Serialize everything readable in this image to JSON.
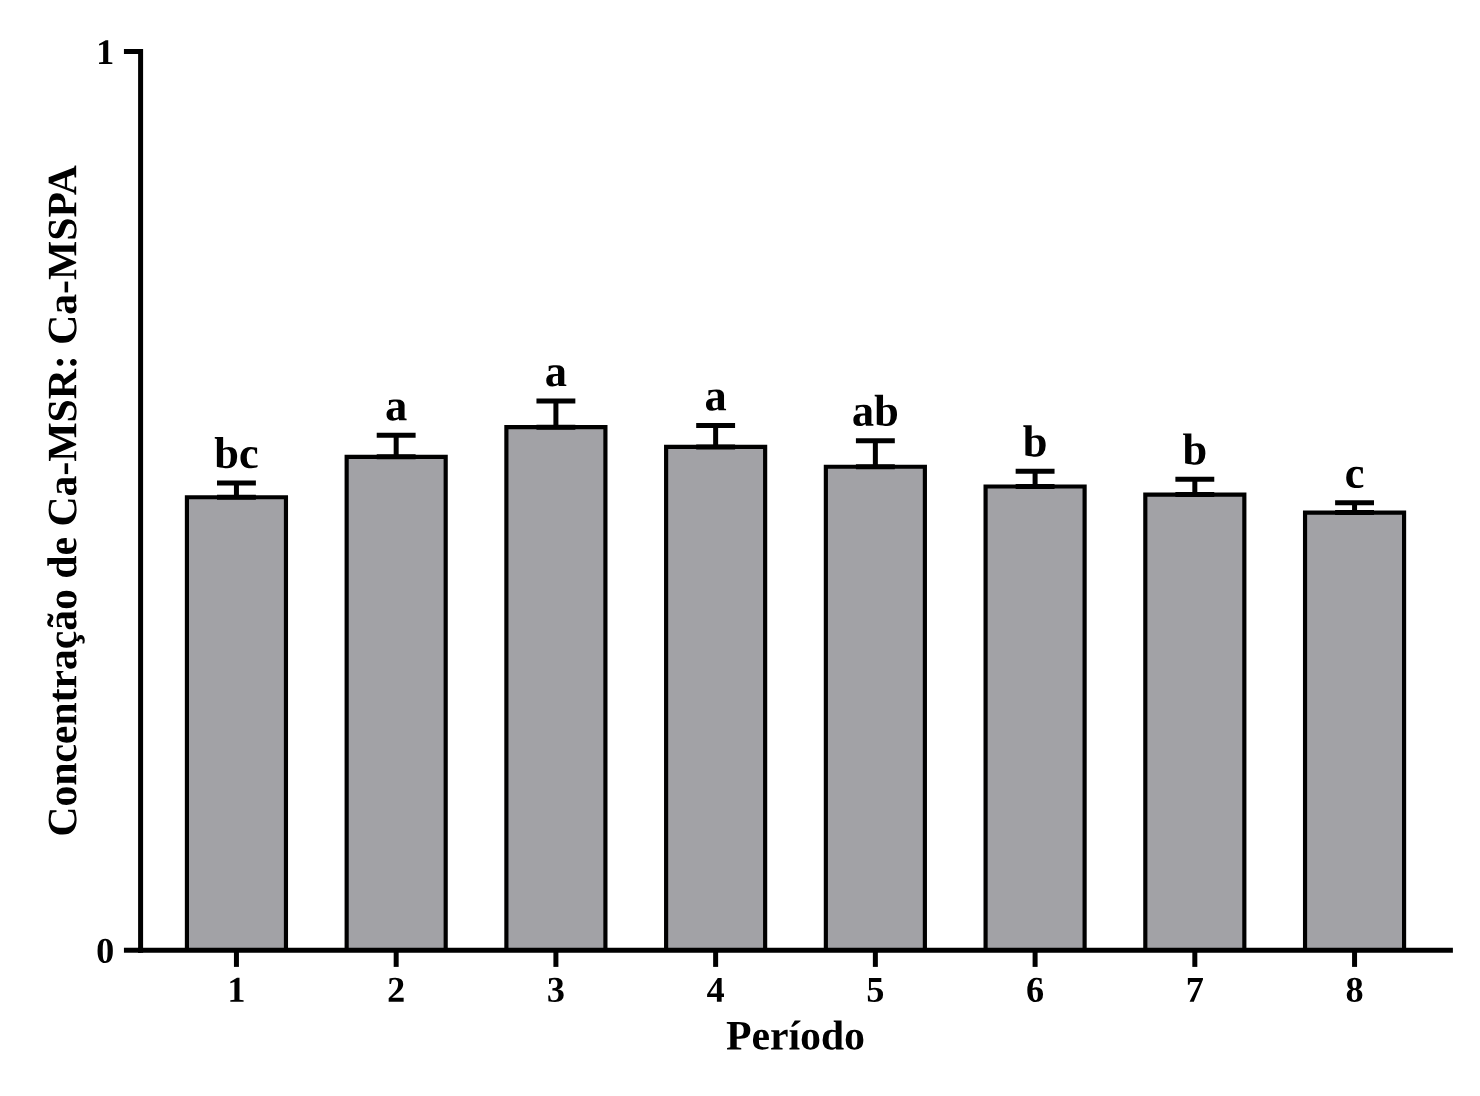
{
  "chart_data": {
    "type": "bar",
    "xlabel": "Período",
    "ylabel": "Concentração de Ca-MSR: Ca-MSPA",
    "categories": [
      "1",
      "2",
      "3",
      "4",
      "5",
      "6",
      "7",
      "8"
    ],
    "values": [
      0.504,
      0.549,
      0.582,
      0.56,
      0.538,
      0.516,
      0.507,
      0.487
    ],
    "errors": [
      [
        0.504,
        0.52
      ],
      [
        0.549,
        0.573
      ],
      [
        0.582,
        0.611
      ],
      [
        0.56,
        0.584
      ],
      [
        0.538,
        0.567
      ],
      [
        0.516,
        0.533
      ],
      [
        0.507,
        0.524
      ],
      [
        0.487,
        0.498
      ]
    ],
    "color": "#a2a2a6",
    "ylim": [
      0,
      1
    ],
    "yticks": [
      0,
      1
    ],
    "grid": false,
    "annotations": [
      {
        "text": "bc",
        "x": "1",
        "y": 0.52
      },
      {
        "text": "a",
        "x": "2",
        "y": 0.573
      },
      {
        "text": "a",
        "x": "3",
        "y": 0.611
      },
      {
        "text": "a",
        "x": "4",
        "y": 0.584
      },
      {
        "text": "ab",
        "x": "5",
        "y": 0.567
      },
      {
        "text": "b",
        "x": "6",
        "y": 0.533
      },
      {
        "text": "b",
        "x": "7",
        "y": 0.524
      },
      {
        "text": "c",
        "x": "8",
        "y": 0.498
      }
    ]
  }
}
